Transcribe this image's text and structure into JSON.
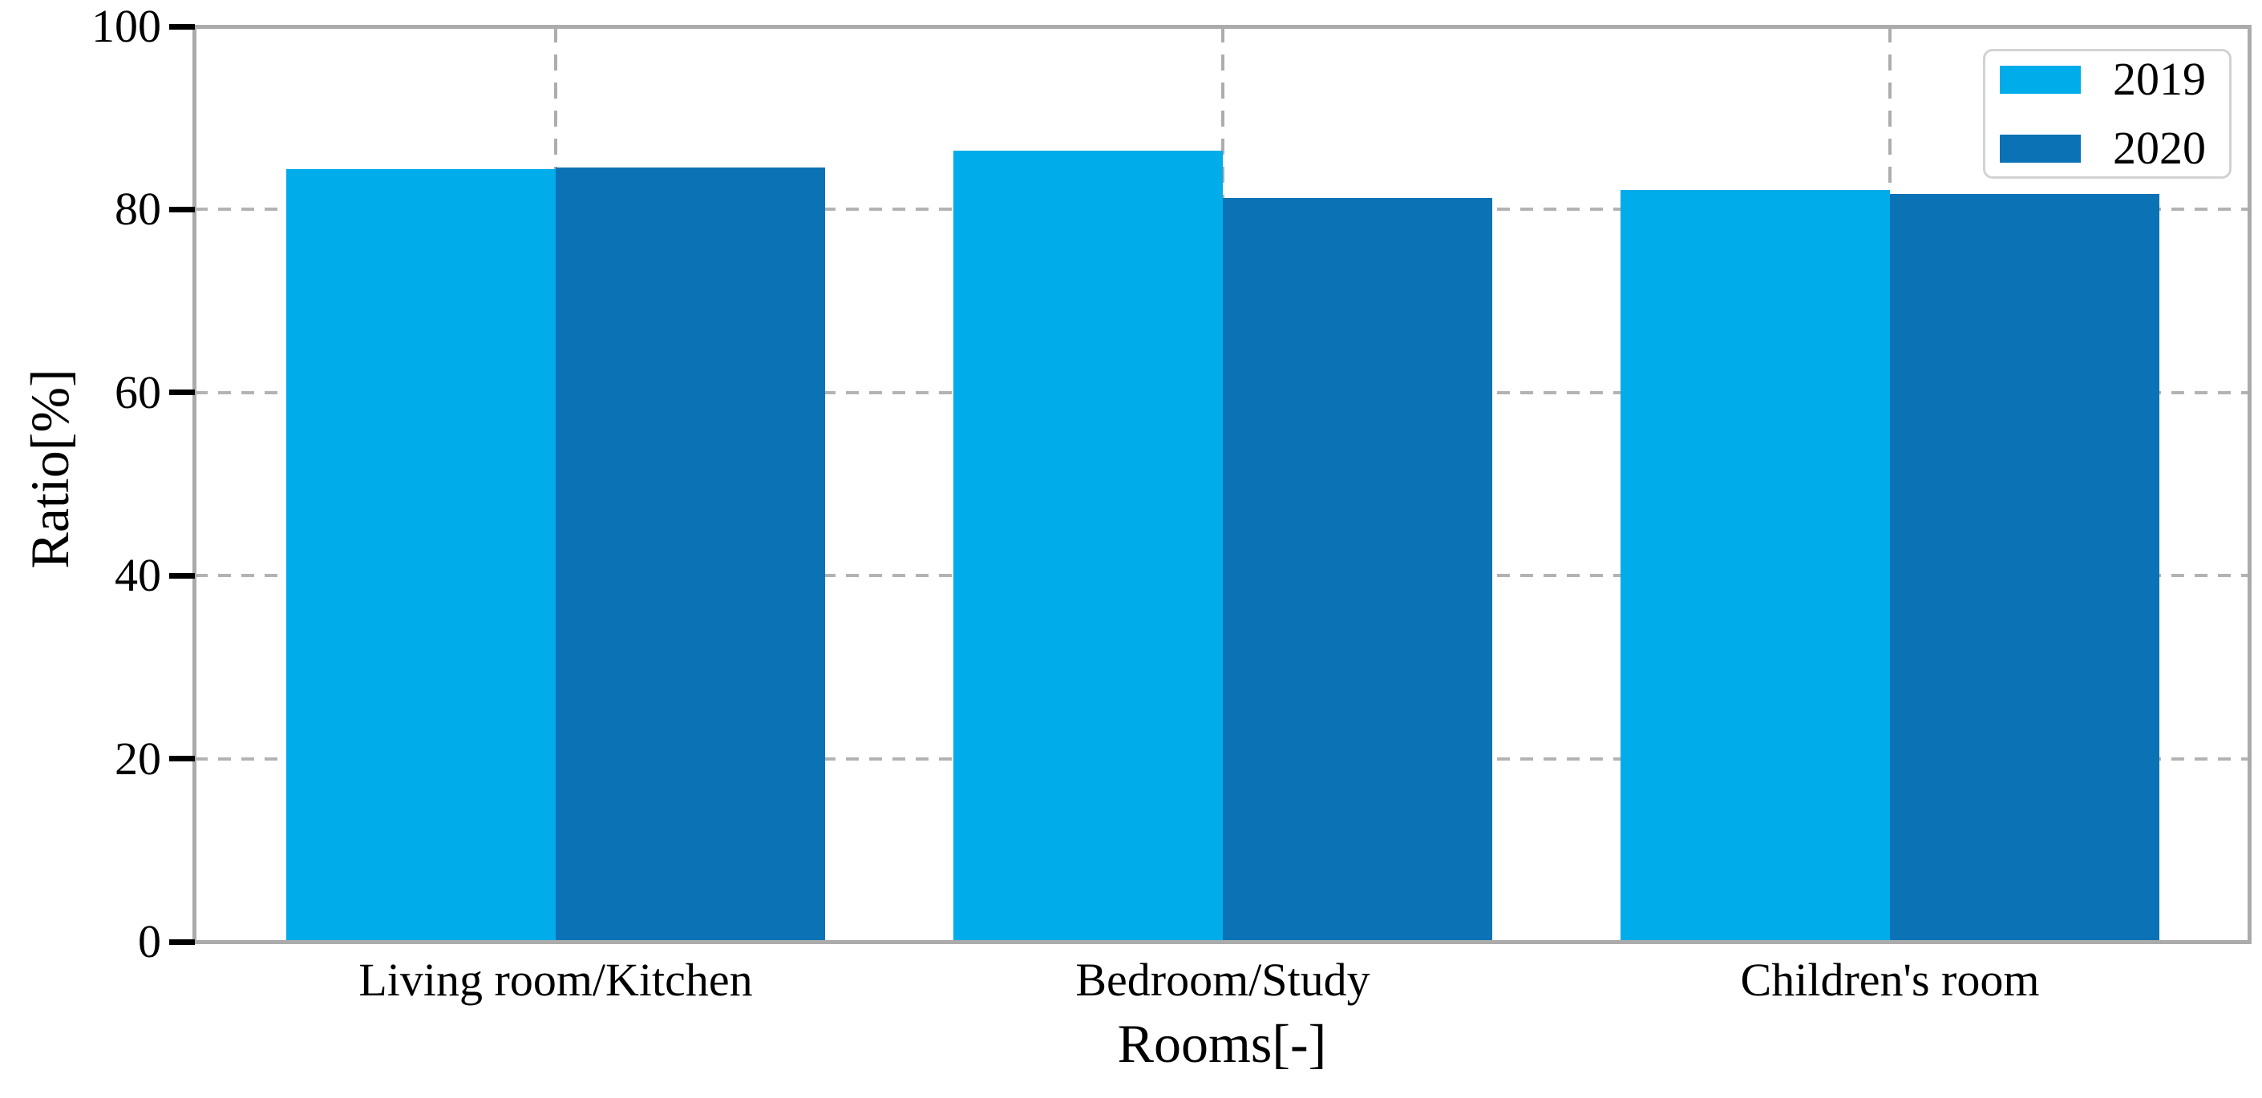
{
  "chart_data": {
    "type": "bar",
    "categories": [
      "Living room/Kitchen",
      "Bedroom/Study",
      "Children's room"
    ],
    "series": [
      {
        "name": "2019",
        "color": "#00adea",
        "values": [
          84.4,
          86.4,
          82.1
        ]
      },
      {
        "name": "2020",
        "color": "#0b72b5",
        "values": [
          84.6,
          81.3,
          81.7
        ]
      }
    ],
    "xlabel": "Rooms[-]",
    "ylabel": "Ratio[%]",
    "ylim": [
      0,
      100
    ],
    "yticks": [
      0,
      20,
      40,
      60,
      80,
      100
    ],
    "grid": true,
    "legend_position": "upper right"
  },
  "colors": {
    "spine": "#ababab",
    "grid": "#b3b3b3",
    "background": "#ffffff",
    "legend_border": "#d2d2d2",
    "tick_text": "#000000"
  }
}
